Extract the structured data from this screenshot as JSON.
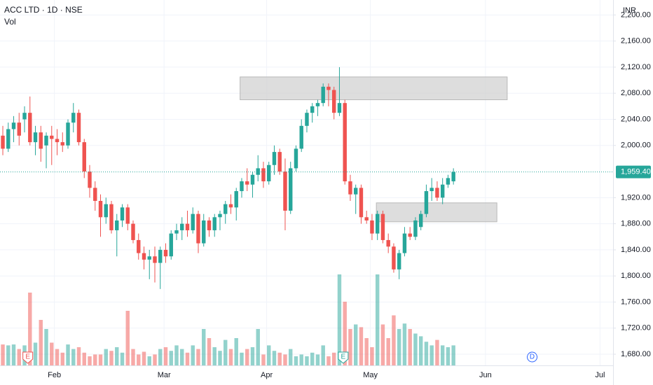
{
  "chart_data": {
    "type": "candlestick",
    "title": "ACC LTD · 1D · NSE",
    "volume_label": "Vol",
    "currency": "INR",
    "up_color": "#26a69a",
    "down_color": "#ef5350",
    "grid": true,
    "ylim": [
      1662.9,
      2222.9
    ],
    "yticks": [
      {
        "value": 1680,
        "label": "1,680.00"
      },
      {
        "value": 1720,
        "label": "1,720.00"
      },
      {
        "value": 1760,
        "label": "1,760.00"
      },
      {
        "value": 1800,
        "label": "1,800.00"
      },
      {
        "value": 1840,
        "label": "1,840.00"
      },
      {
        "value": 1880,
        "label": "1,880.00"
      },
      {
        "value": 1920,
        "label": "1,920.00"
      },
      {
        "value": 2000,
        "label": "2,000.00"
      },
      {
        "value": 2040,
        "label": "2,040.00"
      },
      {
        "value": 2080,
        "label": "2,080.00"
      },
      {
        "value": 2120,
        "label": "2,120.00"
      },
      {
        "value": 2160,
        "label": "2,160.00"
      },
      {
        "value": 2200,
        "label": "2,200.00"
      }
    ],
    "xlim": [
      -0.52,
      112.4
    ],
    "xticks": [
      {
        "value": 9.5,
        "label": "Feb"
      },
      {
        "value": 29.7,
        "label": "Mar"
      },
      {
        "value": 48.6,
        "label": "Apr"
      },
      {
        "value": 67.7,
        "label": "May"
      },
      {
        "value": 88.9,
        "label": "Jun"
      },
      {
        "value": 110,
        "label": "Jul"
      }
    ],
    "last_price": {
      "value": 1959.4,
      "label": "1,959.40"
    },
    "ohlc": [
      [
        2015,
        2030,
        1985,
        1995
      ],
      [
        1995,
        2035,
        1990,
        2025
      ],
      [
        2025,
        2045,
        2005,
        2035
      ],
      [
        2035,
        2050,
        2000,
        2015
      ],
      [
        2040,
        2060,
        2020,
        2050
      ],
      [
        2050,
        2075,
        2000,
        2005
      ],
      [
        2005,
        2030,
        1985,
        2020
      ],
      [
        2020,
        2030,
        1975,
        1995
      ],
      [
        2000,
        2020,
        1965,
        2015
      ],
      [
        2015,
        2030,
        1970,
        2010
      ],
      [
        2010,
        2025,
        1985,
        2005
      ],
      [
        2005,
        2020,
        1990,
        2000
      ],
      [
        2000,
        2040,
        1995,
        2035
      ],
      [
        2035,
        2065,
        2020,
        2050
      ],
      [
        2050,
        2055,
        2000,
        2005
      ],
      [
        2005,
        2010,
        1950,
        1960
      ],
      [
        1960,
        1970,
        1920,
        1935
      ],
      [
        1935,
        1945,
        1900,
        1915
      ],
      [
        1915,
        1925,
        1860,
        1890
      ],
      [
        1890,
        1920,
        1880,
        1910
      ],
      [
        1910,
        1915,
        1865,
        1870
      ],
      [
        1870,
        1895,
        1830,
        1885
      ],
      [
        1885,
        1910,
        1875,
        1905
      ],
      [
        1905,
        1910,
        1870,
        1880
      ],
      [
        1880,
        1885,
        1850,
        1855
      ],
      [
        1855,
        1865,
        1825,
        1835
      ],
      [
        1835,
        1845,
        1810,
        1825
      ],
      [
        1825,
        1840,
        1795,
        1830
      ],
      [
        1830,
        1845,
        1790,
        1820
      ],
      [
        1820,
        1845,
        1780,
        1840
      ],
      [
        1840,
        1850,
        1820,
        1830
      ],
      [
        1830,
        1870,
        1825,
        1865
      ],
      [
        1865,
        1880,
        1855,
        1870
      ],
      [
        1870,
        1890,
        1855,
        1880
      ],
      [
        1880,
        1900,
        1860,
        1870
      ],
      [
        1870,
        1905,
        1865,
        1895
      ],
      [
        1895,
        1900,
        1835,
        1850
      ],
      [
        1850,
        1895,
        1845,
        1885
      ],
      [
        1885,
        1890,
        1860,
        1870
      ],
      [
        1870,
        1895,
        1860,
        1890
      ],
      [
        1890,
        1900,
        1870,
        1895
      ],
      [
        1895,
        1915,
        1880,
        1910
      ],
      [
        1910,
        1925,
        1895,
        1905
      ],
      [
        1905,
        1935,
        1885,
        1930
      ],
      [
        1930,
        1950,
        1920,
        1945
      ],
      [
        1945,
        1965,
        1930,
        1940
      ],
      [
        1940,
        1960,
        1920,
        1955
      ],
      [
        1955,
        1985,
        1945,
        1965
      ],
      [
        1965,
        1975,
        1935,
        1945
      ],
      [
        1945,
        1975,
        1940,
        1970
      ],
      [
        1970,
        2000,
        1955,
        1990
      ],
      [
        1990,
        1995,
        1955,
        1960
      ],
      [
        1960,
        1980,
        1870,
        1900
      ],
      [
        1900,
        1975,
        1895,
        1965
      ],
      [
        1965,
        2000,
        1960,
        1995
      ],
      [
        1995,
        2040,
        1990,
        2030
      ],
      [
        2030,
        2055,
        2020,
        2050
      ],
      [
        2050,
        2065,
        2035,
        2060
      ],
      [
        2060,
        2070,
        2045,
        2065
      ],
      [
        2065,
        2095,
        2060,
        2090
      ],
      [
        2090,
        2095,
        2060,
        2085
      ],
      [
        2085,
        2090,
        2040,
        2050
      ],
      [
        2050,
        2120,
        2045,
        2065
      ],
      [
        2065,
        2070,
        1940,
        1945
      ],
      [
        1945,
        1955,
        1915,
        1925
      ],
      [
        1925,
        1940,
        1895,
        1935
      ],
      [
        1935,
        1940,
        1880,
        1890
      ],
      [
        1890,
        1900,
        1880,
        1885
      ],
      [
        1885,
        1895,
        1855,
        1865
      ],
      [
        1865,
        1900,
        1855,
        1895
      ],
      [
        1895,
        1900,
        1850,
        1855
      ],
      [
        1855,
        1865,
        1835,
        1845
      ],
      [
        1845,
        1850,
        1805,
        1810
      ],
      [
        1810,
        1840,
        1795,
        1835
      ],
      [
        1835,
        1875,
        1830,
        1865
      ],
      [
        1865,
        1875,
        1855,
        1860
      ],
      [
        1860,
        1890,
        1855,
        1885
      ],
      [
        1875,
        1900,
        1870,
        1895
      ],
      [
        1895,
        1940,
        1890,
        1930
      ],
      [
        1930,
        1950,
        1915,
        1935
      ],
      [
        1935,
        1945,
        1915,
        1920
      ],
      [
        1920,
        1950,
        1910,
        1940
      ],
      [
        1940,
        1955,
        1935,
        1950
      ],
      [
        1945,
        1965,
        1940,
        1959.4
      ]
    ],
    "volume": [
      23,
      22,
      23,
      18,
      22,
      80,
      25,
      50,
      40,
      25,
      18,
      14,
      23,
      18,
      20,
      14,
      10,
      12,
      12,
      18,
      16,
      20,
      14,
      60,
      18,
      12,
      15,
      10,
      12,
      18,
      20,
      16,
      22,
      18,
      14,
      22,
      18,
      40,
      30,
      20,
      16,
      28,
      18,
      30,
      14,
      18,
      20,
      40,
      12,
      22,
      16,
      14,
      12,
      18,
      10,
      12,
      10,
      14,
      12,
      22,
      10,
      14,
      100,
      70,
      40,
      45,
      42,
      30,
      20,
      100,
      45,
      30,
      55,
      40,
      46,
      40,
      35,
      32,
      26,
      22,
      28,
      22,
      20,
      22
    ],
    "volume_lim": [
      0,
      100
    ],
    "zones": [
      {
        "x": [
          43.7,
          92.9
        ],
        "y": [
          2070,
          2105
        ]
      },
      {
        "x": [
          68.8,
          91
        ],
        "y": [
          1883,
          1912
        ]
      }
    ],
    "events": [
      {
        "x": 4.6,
        "label": "E",
        "color": "#ef5350"
      },
      {
        "x": 62.7,
        "label": "E",
        "color": "#26a69a"
      },
      {
        "x": 97.5,
        "label": "D",
        "color": "#2962ff"
      }
    ]
  }
}
